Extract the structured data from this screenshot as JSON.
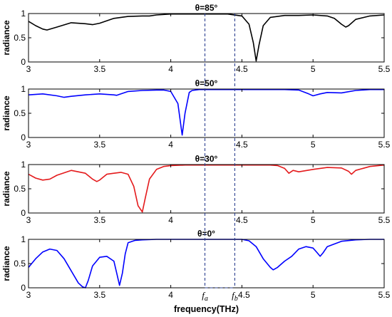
{
  "chart_data": {
    "type": "line",
    "xlabel": "frequency(THz)",
    "xlim": [
      3,
      5.5
    ],
    "x_ticks": [
      "3",
      "3.5",
      "4",
      "4.5",
      "5",
      "5.5"
    ],
    "markers": [
      {
        "label": "f_a",
        "sym": "f",
        "sub": "a",
        "x": 4.24
      },
      {
        "label": "f_b",
        "sym": "f",
        "sub": "b",
        "x": 4.45
      }
    ],
    "panels": [
      {
        "title": "θ=85°",
        "ylabel": "radiance",
        "ylim": [
          0,
          1
        ],
        "y_ticks": [
          "0",
          "0.5",
          "1"
        ],
        "color": "#000000",
        "series": [
          {
            "x": [
              3.0,
              3.05,
              3.1,
              3.13,
              3.2,
              3.3,
              3.4,
              3.45,
              3.5,
              3.6,
              3.7,
              3.8,
              3.85,
              3.9,
              4.0,
              4.1,
              4.2,
              4.3,
              4.4,
              4.5,
              4.55,
              4.58,
              4.6,
              4.62,
              4.65,
              4.7,
              4.8,
              4.9,
              5.0,
              5.1,
              5.15,
              5.2,
              5.23,
              5.25,
              5.3,
              5.4,
              5.5
            ],
            "y": [
              0.84,
              0.75,
              0.68,
              0.66,
              0.72,
              0.81,
              0.79,
              0.77,
              0.8,
              0.9,
              0.94,
              0.95,
              0.95,
              0.97,
              0.99,
              0.99,
              0.99,
              0.99,
              0.99,
              0.95,
              0.78,
              0.4,
              0.02,
              0.35,
              0.75,
              0.92,
              0.96,
              0.96,
              0.97,
              0.95,
              0.9,
              0.78,
              0.72,
              0.75,
              0.88,
              0.95,
              0.97
            ]
          }
        ]
      },
      {
        "title": "θ=50°",
        "ylabel": "radiance",
        "ylim": [
          0,
          1
        ],
        "y_ticks": [
          "0",
          "0.5",
          "1"
        ],
        "color": "#0000ff",
        "series": [
          {
            "x": [
              3.0,
              3.1,
              3.2,
              3.25,
              3.3,
              3.4,
              3.5,
              3.6,
              3.62,
              3.65,
              3.7,
              3.8,
              3.9,
              3.95,
              4.0,
              4.05,
              4.08,
              4.1,
              4.13,
              4.15,
              4.2,
              4.3,
              4.4,
              4.5,
              4.6,
              4.7,
              4.8,
              4.9,
              4.97,
              5.0,
              5.05,
              5.1,
              5.2,
              5.3,
              5.4,
              5.5
            ],
            "y": [
              0.88,
              0.9,
              0.86,
              0.83,
              0.85,
              0.88,
              0.9,
              0.88,
              0.87,
              0.9,
              0.95,
              0.97,
              0.98,
              0.98,
              0.95,
              0.7,
              0.05,
              0.5,
              0.93,
              0.97,
              0.99,
              0.99,
              0.99,
              0.99,
              0.99,
              0.99,
              0.99,
              0.98,
              0.9,
              0.86,
              0.9,
              0.93,
              0.92,
              0.97,
              0.99,
              0.99
            ]
          }
        ]
      },
      {
        "title": "θ=30°",
        "ylabel": "radiance",
        "ylim": [
          0,
          1
        ],
        "y_ticks": [
          "0",
          "0.5",
          "1"
        ],
        "color": "#e41a1c",
        "series": [
          {
            "x": [
              3.0,
              3.05,
              3.1,
              3.15,
              3.2,
              3.3,
              3.4,
              3.45,
              3.48,
              3.5,
              3.55,
              3.6,
              3.65,
              3.7,
              3.74,
              3.77,
              3.8,
              3.82,
              3.85,
              3.9,
              3.95,
              4.0,
              4.1,
              4.2,
              4.3,
              4.4,
              4.5,
              4.6,
              4.7,
              4.75,
              4.8,
              4.83,
              4.86,
              4.9,
              5.0,
              5.1,
              5.2,
              5.25,
              5.27,
              5.3,
              5.4,
              5.5
            ],
            "y": [
              0.8,
              0.72,
              0.68,
              0.7,
              0.78,
              0.88,
              0.82,
              0.7,
              0.65,
              0.68,
              0.8,
              0.82,
              0.84,
              0.8,
              0.55,
              0.15,
              0.02,
              0.3,
              0.7,
              0.9,
              0.96,
              0.98,
              0.99,
              0.99,
              0.99,
              0.99,
              0.99,
              0.99,
              0.99,
              0.98,
              0.92,
              0.82,
              0.88,
              0.85,
              0.9,
              0.94,
              0.93,
              0.86,
              0.8,
              0.88,
              0.96,
              0.99
            ]
          }
        ]
      },
      {
        "title": "θ=0°",
        "ylabel": "radiance",
        "ylim": [
          0,
          1
        ],
        "y_ticks": [
          "0",
          "0.5",
          "1"
        ],
        "color": "#0000ff",
        "series": [
          {
            "x": [
              3.0,
              3.05,
              3.1,
              3.15,
              3.2,
              3.25,
              3.3,
              3.35,
              3.38,
              3.4,
              3.42,
              3.45,
              3.5,
              3.55,
              3.6,
              3.62,
              3.64,
              3.66,
              3.68,
              3.7,
              3.75,
              3.8,
              3.9,
              4.0,
              4.1,
              4.2,
              4.3,
              4.4,
              4.5,
              4.55,
              4.6,
              4.65,
              4.7,
              4.72,
              4.75,
              4.8,
              4.85,
              4.9,
              4.95,
              5.0,
              5.03,
              5.05,
              5.07,
              5.1,
              5.2,
              5.3,
              5.4,
              5.5
            ],
            "y": [
              0.42,
              0.6,
              0.74,
              0.8,
              0.77,
              0.6,
              0.35,
              0.1,
              0.02,
              0.0,
              0.15,
              0.45,
              0.63,
              0.65,
              0.55,
              0.3,
              0.05,
              0.3,
              0.7,
              0.93,
              0.98,
              0.99,
              1.0,
              1.0,
              1.0,
              1.0,
              1.0,
              1.0,
              1.0,
              0.97,
              0.85,
              0.6,
              0.42,
              0.37,
              0.42,
              0.55,
              0.65,
              0.8,
              0.85,
              0.82,
              0.72,
              0.65,
              0.72,
              0.85,
              0.96,
              0.99,
              1.0,
              1.0
            ]
          }
        ]
      }
    ]
  }
}
